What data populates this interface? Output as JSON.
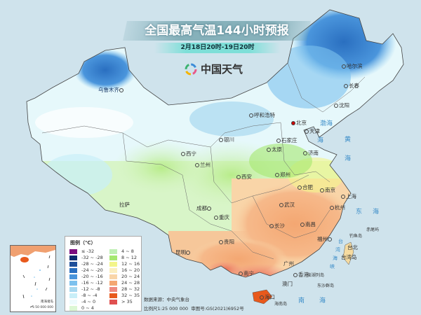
{
  "header": {
    "title": "全国最高气温144小时预报",
    "subtitle": "2月18日20时-19日20时",
    "logo_text": "中国天气"
  },
  "cities": [
    {
      "name": "哈尔滨"
    },
    {
      "name": "长春"
    },
    {
      "name": "沈阳"
    },
    {
      "name": "北京"
    },
    {
      "name": "天津"
    },
    {
      "name": "石家庄"
    },
    {
      "name": "太原"
    },
    {
      "name": "济南"
    },
    {
      "name": "呼和浩特"
    },
    {
      "name": "银川"
    },
    {
      "name": "西宁"
    },
    {
      "name": "兰州"
    },
    {
      "name": "西安"
    },
    {
      "name": "郑州"
    },
    {
      "name": "合肥"
    },
    {
      "name": "南京"
    },
    {
      "name": "上海"
    },
    {
      "name": "武汉"
    },
    {
      "name": "杭州"
    },
    {
      "name": "长沙"
    },
    {
      "name": "南昌"
    },
    {
      "name": "成都"
    },
    {
      "name": "重庆"
    },
    {
      "name": "贵阳"
    },
    {
      "name": "昆明"
    },
    {
      "name": "南宁"
    },
    {
      "name": "广州"
    },
    {
      "name": "香港"
    },
    {
      "name": "澳门"
    },
    {
      "name": "福州"
    },
    {
      "name": "台北"
    },
    {
      "name": "台湾岛"
    },
    {
      "name": "海口"
    },
    {
      "name": "拉萨"
    },
    {
      "name": "乌鲁木齐"
    },
    {
      "name": "钓鱼岛"
    },
    {
      "name": "赤尾屿"
    },
    {
      "name": "澎湖列岛"
    },
    {
      "name": "东沙群岛"
    },
    {
      "name": "海南岛"
    }
  ],
  "seas": {
    "bohai": "渤海",
    "bohai2": "海",
    "yellow": "黄",
    "yellow2": "海",
    "east": "东",
    "east2": "海",
    "taiwan_strait": [
      "台",
      "湾",
      "海",
      "峡"
    ],
    "south": "南",
    "south2": "海"
  },
  "legend": {
    "title": "图例（℃）",
    "items": [
      {
        "label": "≤ -32",
        "color": "#7b0c7e"
      },
      {
        "label": "-32 ~ -28",
        "color": "#0c2a6e"
      },
      {
        "label": "-28 ~ -24",
        "color": "#1f4f9a"
      },
      {
        "label": "-24 ~ -20",
        "color": "#2a6fc0"
      },
      {
        "label": "-20 ~ -16",
        "color": "#4a95dc"
      },
      {
        "label": "-16 ~ -12",
        "color": "#7cc1ee"
      },
      {
        "label": "-12 ~ -8",
        "color": "#a8d9f0"
      },
      {
        "label": "-8 ~ -4",
        "color": "#c9eff8"
      },
      {
        "label": "-4 ~ 0",
        "color": "#eefbfd"
      },
      {
        "label": "0 ~ 4",
        "color": "#dcf7d4"
      },
      {
        "label": "4 ~ 8",
        "color": "#bff0b4"
      },
      {
        "label": "8 ~ 12",
        "color": "#a5e870"
      },
      {
        "label": "12 ~ 16",
        "color": "#f3f58a"
      },
      {
        "label": "16 ~ 20",
        "color": "#fbeec0"
      },
      {
        "label": "20 ~ 24",
        "color": "#f9d5a8"
      },
      {
        "label": "24 ~ 28",
        "color": "#f4a772"
      },
      {
        "label": "28 ~ 32",
        "color": "#ef8a80"
      },
      {
        "label": "32 ~ 35",
        "color": "#e8591c"
      },
      {
        "label": "> 35",
        "color": "#e05050"
      }
    ]
  },
  "footer": {
    "source": "数据来源：中央气象台",
    "scale": "比例尺1:25 000 000",
    "map_number": "审图号:GS(2021)6952号"
  },
  "inset": {
    "title": "南海诸岛",
    "scale": "1:50 000 000"
  }
}
